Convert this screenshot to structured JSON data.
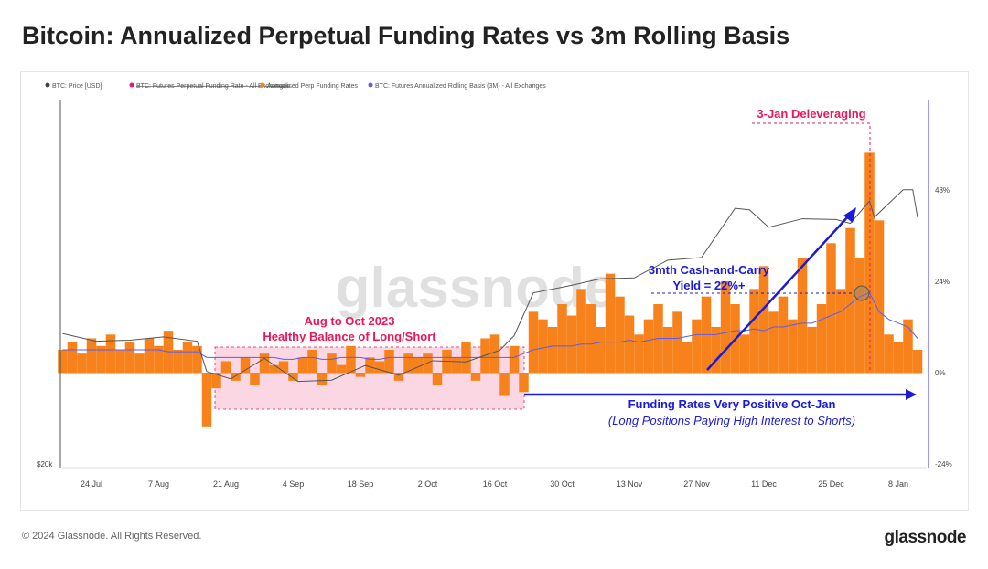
{
  "title": "Bitcoin: Annualized Perpetual Funding Rates vs 3m Rolling Basis",
  "footer": "© 2024 Glassnode. All Rights Reserved.",
  "logo": "glassnode",
  "chart_data": {
    "type": "line",
    "title": "Bitcoin: Annualized Perpetual Funding Rates vs 3m Rolling Basis",
    "watermark": "glassnode",
    "legend": {
      "placement": "top-left",
      "items": [
        {
          "label": "BTC: Price [USD]",
          "color": "#444444",
          "hidden": false
        },
        {
          "label": "BTC: Futures Perpetual Funding Rate - All Exchanges",
          "color": "#e8187a",
          "hidden": true
        },
        {
          "label": "Annualised Perp Funding Rates",
          "color": "#f7821b",
          "hidden": false
        },
        {
          "label": "BTC: Futures Annualized Rolling Basis (3M) - All Exchanges",
          "color": "#5b5bf0",
          "hidden": false
        }
      ]
    },
    "x_ticks": [
      "24 Jul",
      "7 Aug",
      "21 Aug",
      "4 Sep",
      "18 Sep",
      "2 Oct",
      "16 Oct",
      "30 Oct",
      "13 Nov",
      "27 Nov",
      "11 Dec",
      "25 Dec",
      "8 Jan"
    ],
    "x_tick_dates": [
      "2023-07-24",
      "2023-08-07",
      "2023-08-21",
      "2023-09-04",
      "2023-09-18",
      "2023-10-02",
      "2023-10-16",
      "2023-10-30",
      "2023-11-13",
      "2023-11-27",
      "2023-12-11",
      "2023-12-25",
      "2024-01-08"
    ],
    "left_axis": {
      "scale": "log",
      "ticks": [
        "$20k"
      ]
    },
    "right_axis": {
      "ticks": [
        "48%",
        "24%",
        "0%",
        "-24%"
      ],
      "range": [
        -24,
        72
      ]
    },
    "grid": false,
    "price": {
      "name": "BTC: Price [USD]",
      "x": [
        "2023-07-18",
        "2023-07-25",
        "2023-08-01",
        "2023-08-08",
        "2023-08-15",
        "2023-08-17",
        "2023-08-22",
        "2023-08-29",
        "2023-09-05",
        "2023-09-12",
        "2023-09-19",
        "2023-09-26",
        "2023-10-03",
        "2023-10-10",
        "2023-10-17",
        "2023-10-20",
        "2023-10-24",
        "2023-10-31",
        "2023-11-07",
        "2023-11-14",
        "2023-11-21",
        "2023-11-28",
        "2023-12-05",
        "2023-12-08",
        "2023-12-12",
        "2023-12-19",
        "2023-12-26",
        "2023-12-29",
        "2024-01-02",
        "2024-01-03",
        "2024-01-09",
        "2024-01-11",
        "2024-01-12"
      ],
      "values": [
        29900,
        29200,
        29300,
        29600,
        29200,
        26600,
        26000,
        27700,
        25800,
        25900,
        27100,
        26300,
        27500,
        27400,
        28400,
        29700,
        33900,
        34600,
        35400,
        35500,
        37500,
        37800,
        44000,
        43800,
        41500,
        42600,
        42500,
        42000,
        45000,
        42800,
        46600,
        46600,
        42800
      ]
    },
    "funding": {
      "name": "Annualised Perp Funding Rates",
      "unit": "%",
      "x": [
        "2023-07-18",
        "2023-07-20",
        "2023-07-22",
        "2023-07-24",
        "2023-07-26",
        "2023-07-28",
        "2023-07-30",
        "2023-08-01",
        "2023-08-03",
        "2023-08-05",
        "2023-08-07",
        "2023-08-09",
        "2023-08-11",
        "2023-08-13",
        "2023-08-15",
        "2023-08-17",
        "2023-08-19",
        "2023-08-21",
        "2023-08-23",
        "2023-08-25",
        "2023-08-27",
        "2023-08-29",
        "2023-08-31",
        "2023-09-02",
        "2023-09-04",
        "2023-09-06",
        "2023-09-08",
        "2023-09-10",
        "2023-09-12",
        "2023-09-14",
        "2023-09-16",
        "2023-09-18",
        "2023-09-20",
        "2023-09-22",
        "2023-09-24",
        "2023-09-26",
        "2023-09-28",
        "2023-09-30",
        "2023-10-02",
        "2023-10-04",
        "2023-10-06",
        "2023-10-08",
        "2023-10-10",
        "2023-10-12",
        "2023-10-14",
        "2023-10-16",
        "2023-10-18",
        "2023-10-20",
        "2023-10-22",
        "2023-10-24",
        "2023-10-26",
        "2023-10-28",
        "2023-10-30",
        "2023-11-01",
        "2023-11-03",
        "2023-11-05",
        "2023-11-07",
        "2023-11-09",
        "2023-11-11",
        "2023-11-13",
        "2023-11-15",
        "2023-11-17",
        "2023-11-19",
        "2023-11-21",
        "2023-11-23",
        "2023-11-25",
        "2023-11-27",
        "2023-11-29",
        "2023-12-01",
        "2023-12-03",
        "2023-12-05",
        "2023-12-07",
        "2023-12-09",
        "2023-12-11",
        "2023-12-13",
        "2023-12-15",
        "2023-12-17",
        "2023-12-19",
        "2023-12-21",
        "2023-12-23",
        "2023-12-25",
        "2023-12-27",
        "2023-12-29",
        "2023-12-31",
        "2024-01-02",
        "2024-01-04",
        "2024-01-06",
        "2024-01-08",
        "2024-01-10",
        "2024-01-12"
      ],
      "values": [
        6,
        8,
        5,
        9,
        7,
        10,
        6,
        8,
        5,
        9,
        7,
        11,
        6,
        8,
        7,
        -14,
        -4,
        3,
        -2,
        4,
        -3,
        5,
        2,
        3,
        -2,
        4,
        6,
        -3,
        5,
        2,
        7,
        -1,
        4,
        3,
        6,
        -2,
        5,
        4,
        5,
        -3,
        6,
        4,
        8,
        -2,
        9,
        10,
        -6,
        7,
        -5,
        16,
        14,
        12,
        18,
        15,
        22,
        18,
        12,
        26,
        20,
        15,
        10,
        14,
        18,
        12,
        16,
        8,
        14,
        20,
        12,
        24,
        18,
        10,
        22,
        28,
        16,
        20,
        14,
        30,
        12,
        18,
        34,
        22,
        38,
        30,
        58,
        40,
        10,
        8,
        14,
        6
      ]
    },
    "basis": {
      "name": "BTC: Futures Annualized Rolling Basis (3M) - All Exchanges",
      "unit": "%",
      "values": [
        6,
        6,
        6,
        6,
        6,
        6,
        6,
        6,
        6,
        6,
        6,
        5.5,
        5.5,
        5.5,
        5.5,
        4,
        4,
        4,
        4,
        4,
        4,
        4,
        4,
        3.5,
        3.5,
        4,
        4,
        3.5,
        3.5,
        4,
        4,
        4,
        3.5,
        3.5,
        4,
        4,
        4,
        4,
        4,
        4,
        4,
        4,
        4,
        4,
        4,
        4,
        4,
        4,
        5,
        6,
        6.5,
        7,
        7,
        7,
        7.5,
        7.5,
        8,
        8,
        8,
        8.5,
        8,
        8.5,
        9,
        9,
        9,
        9.5,
        10,
        10,
        10,
        10.5,
        11,
        11,
        11.5,
        11,
        12,
        12,
        12.5,
        13,
        13,
        14,
        15,
        16,
        18,
        20,
        21,
        16,
        14,
        13,
        12,
        9
      ]
    },
    "annotations": {
      "aug_oct_line1": "Aug to Oct 2023",
      "aug_oct_line2": "Healthy Balance of Long/Short",
      "delever": "3-Jan Deleveraging",
      "yield_line1": "3mth Cash-and-Carry",
      "yield_line2": "Yield = 22%+",
      "funding_line1": "Funding Rates Very Positive Oct-Jan",
      "funding_line2": "(Long Positions Paying High Interest to Shorts)"
    },
    "colors": {
      "annotation_red": "#e8185a",
      "annotation_blue": "#1a1ad8",
      "highlight_fill": "#f9c6d8"
    }
  }
}
